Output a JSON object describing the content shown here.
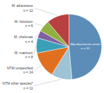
{
  "chart_data": {
    "type": "pie",
    "categories": [
      "Mycobacterium avium",
      "NTM other species*",
      "NTM unspecified",
      "M. marinum",
      "M. chelonae",
      "M. fortuitum",
      "M. abscessus"
    ],
    "values": [
      52,
      11,
      14,
      8,
      4,
      6,
      12
    ],
    "value_labels": [
      "n = 52",
      "n = 11",
      "n = 14",
      "n = 8",
      "n = 4",
      "n = 6",
      "n = 12"
    ],
    "colors": [
      "#5B8DB8",
      "#9DC3D4",
      "#E07020",
      "#3AA0B8",
      "#8060A0",
      "#90B040",
      "#B84040"
    ],
    "data_labels": true
  }
}
